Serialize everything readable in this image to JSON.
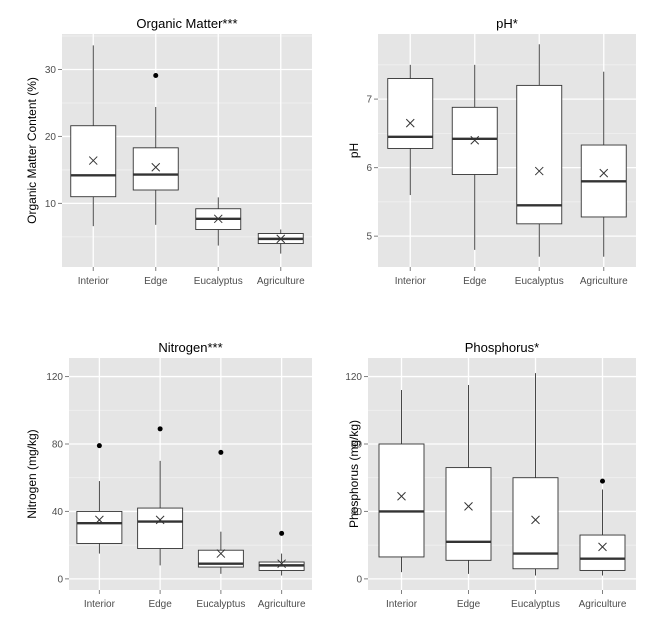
{
  "colors": {
    "panel_bg": "#e5e5e5",
    "grid_major": "#ffffff",
    "grid_minor": "#f2f2f2",
    "box_fill": "#ffffff",
    "line": "#333333"
  },
  "chart_data": [
    {
      "type": "box",
      "title": "Organic Matter***",
      "ylabel": "Organic Matter Content (%)",
      "categories": [
        "Interior",
        "Edge",
        "Eucalyptus",
        "Agriculture"
      ],
      "yticks": [
        10,
        20,
        30
      ],
      "ytick_labels": [
        "10",
        "20",
        "30"
      ],
      "ylim": [
        0.5,
        35.3
      ],
      "boxes": [
        {
          "whisker_low": 6.6,
          "q1": 11.0,
          "median": 14.2,
          "q3": 21.6,
          "whisker_high": 33.6,
          "mean": 16.4,
          "outliers": []
        },
        {
          "whisker_low": 6.8,
          "q1": 12.0,
          "median": 14.3,
          "q3": 18.3,
          "whisker_high": 24.4,
          "mean": 15.4,
          "outliers": [
            29.1
          ]
        },
        {
          "whisker_low": 3.7,
          "q1": 6.1,
          "median": 7.7,
          "q3": 9.2,
          "whisker_high": 10.9,
          "mean": 7.7,
          "outliers": []
        },
        {
          "whisker_low": 2.5,
          "q1": 4.0,
          "median": 4.7,
          "q3": 5.5,
          "whisker_high": 6.1,
          "mean": 4.7,
          "outliers": []
        }
      ]
    },
    {
      "type": "box",
      "title": "pH*",
      "ylabel": "pH",
      "categories": [
        "Interior",
        "Edge",
        "Eucalyptus",
        "Agriculture"
      ],
      "yticks": [
        5,
        6,
        7
      ],
      "ytick_labels": [
        "5",
        "6",
        "7"
      ],
      "ylim": [
        4.55,
        7.95
      ],
      "boxes": [
        {
          "whisker_low": 5.6,
          "q1": 6.28,
          "median": 6.45,
          "q3": 7.3,
          "whisker_high": 7.5,
          "mean": 6.65,
          "outliers": []
        },
        {
          "whisker_low": 4.8,
          "q1": 5.9,
          "median": 6.42,
          "q3": 6.88,
          "whisker_high": 7.5,
          "mean": 6.4,
          "outliers": []
        },
        {
          "whisker_low": 4.7,
          "q1": 5.18,
          "median": 5.45,
          "q3": 7.2,
          "whisker_high": 7.8,
          "mean": 5.95,
          "outliers": []
        },
        {
          "whisker_low": 4.7,
          "q1": 5.28,
          "median": 5.8,
          "q3": 6.33,
          "whisker_high": 7.4,
          "mean": 5.92,
          "outliers": []
        }
      ]
    },
    {
      "type": "box",
      "title": "Nitrogen***",
      "ylabel": "Nitrogen (mg/kg)",
      "categories": [
        "Interior",
        "Edge",
        "Eucalyptus",
        "Agriculture"
      ],
      "yticks": [
        0,
        40,
        80,
        120
      ],
      "ytick_labels": [
        "0",
        "40",
        "80",
        "120"
      ],
      "ylim": [
        -6.6,
        131
      ],
      "boxes": [
        {
          "whisker_low": 15,
          "q1": 21,
          "median": 33,
          "q3": 40,
          "whisker_high": 58,
          "mean": 35,
          "outliers": [
            79
          ]
        },
        {
          "whisker_low": 8,
          "q1": 18,
          "median": 34,
          "q3": 42,
          "whisker_high": 70,
          "mean": 35,
          "outliers": [
            89
          ]
        },
        {
          "whisker_low": 3,
          "q1": 7,
          "median": 9,
          "q3": 17,
          "whisker_high": 28,
          "mean": 15,
          "outliers": [
            75
          ]
        },
        {
          "whisker_low": 2,
          "q1": 5,
          "median": 8,
          "q3": 10,
          "whisker_high": 15,
          "mean": 9,
          "outliers": [
            27
          ]
        }
      ]
    },
    {
      "type": "box",
      "title": "Phosphorus*",
      "ylabel": "Phosphorus (mg/kg)",
      "categories": [
        "Interior",
        "Edge",
        "Eucalyptus",
        "Agriculture"
      ],
      "yticks": [
        0,
        40,
        80,
        120
      ],
      "ytick_labels": [
        "0",
        "40",
        "80",
        "120"
      ],
      "ylim": [
        -6.6,
        131
      ],
      "boxes": [
        {
          "whisker_low": 4,
          "q1": 13,
          "median": 40,
          "q3": 80,
          "whisker_high": 112,
          "mean": 49,
          "outliers": []
        },
        {
          "whisker_low": 3,
          "q1": 11,
          "median": 22,
          "q3": 66,
          "whisker_high": 115,
          "mean": 43,
          "outliers": []
        },
        {
          "whisker_low": 2,
          "q1": 6,
          "median": 15,
          "q3": 60,
          "whisker_high": 122,
          "mean": 35,
          "outliers": []
        },
        {
          "whisker_low": 2,
          "q1": 5,
          "median": 12,
          "q3": 26,
          "whisker_high": 53,
          "mean": 19,
          "outliers": [
            58
          ]
        }
      ]
    }
  ]
}
